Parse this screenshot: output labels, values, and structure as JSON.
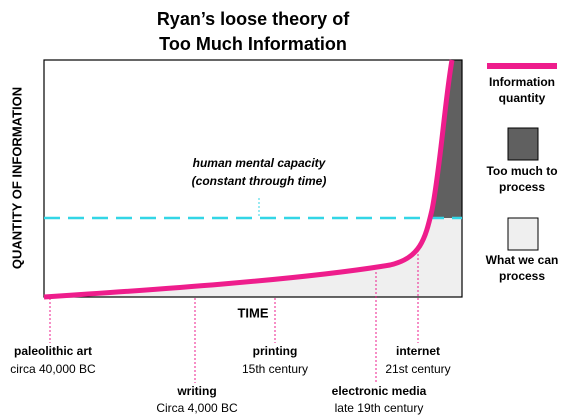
{
  "title": [
    "Ryan’s loose theory of",
    "Too Much Information"
  ],
  "y_axis_label": "QUANTITY OF INFORMATION",
  "x_axis_label": "TIME",
  "annotation": [
    "human mental capacity",
    "(constant through time)"
  ],
  "events": [
    {
      "name": "paleolithic art",
      "date": "circa 40,000 BC"
    },
    {
      "name": "writing",
      "date": "Circa 4,000 BC"
    },
    {
      "name": "printing",
      "date": "15th century"
    },
    {
      "name": "electronic media",
      "date": "late 19th century"
    },
    {
      "name": "internet",
      "date": "21st century"
    }
  ],
  "legend": [
    {
      "label": [
        "Information",
        "quantity"
      ]
    },
    {
      "label": [
        "Too much to",
        "process"
      ]
    },
    {
      "label": [
        "What we can",
        "process"
      ]
    }
  ]
}
